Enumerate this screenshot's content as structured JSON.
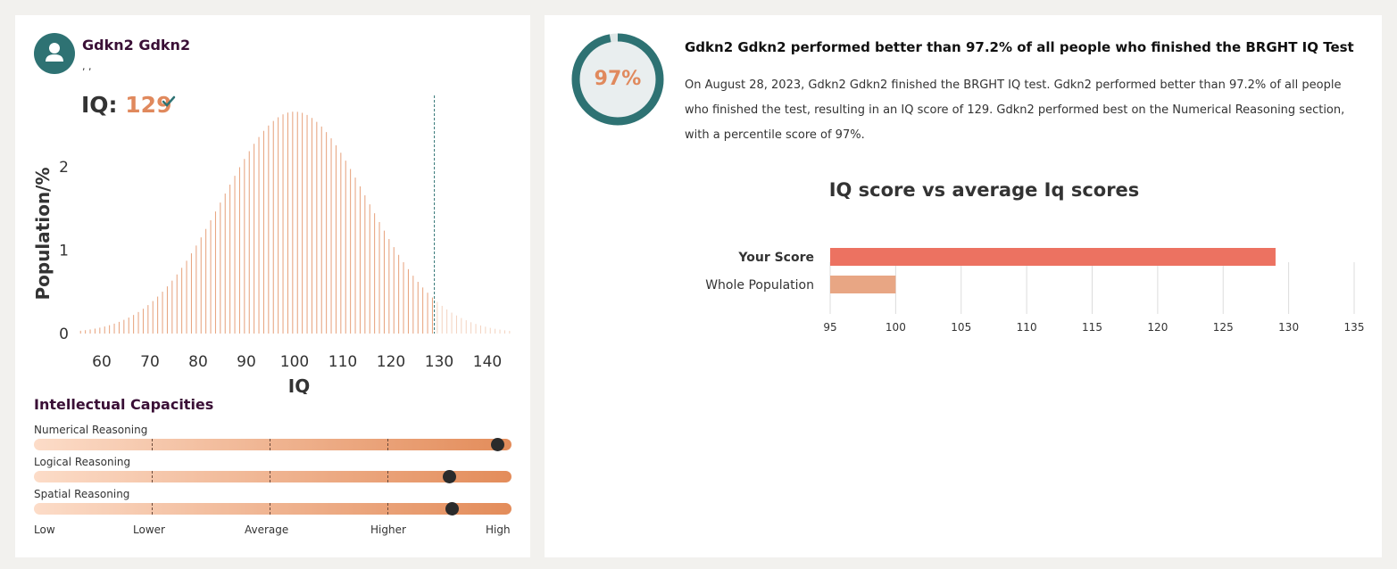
{
  "user": {
    "name": "Gdkn2 Gdkn2",
    "sub": ", ,"
  },
  "iq": {
    "label": "IQ:",
    "value": "129"
  },
  "icons": {
    "avatar": "user-icon",
    "check": "check-icon"
  },
  "colors": {
    "accent": "#e0895d",
    "teal": "#2e7273",
    "bar_your_score": "#ec7261",
    "bar_population": "#e8a684",
    "title_purple": "#3a0f36"
  },
  "distribution_chart": {
    "chart_data": {
      "type": "bar",
      "xlabel": "IQ",
      "ylabel": "Population/%",
      "x_range": [
        55,
        145
      ],
      "y_range": [
        0,
        2.8
      ],
      "x_ticks": [
        60,
        70,
        80,
        90,
        100,
        110,
        120,
        130,
        140
      ],
      "y_ticks": [
        0,
        1,
        2
      ],
      "mean": 100,
      "sd": 15,
      "marker_iq": 129,
      "grid": false
    }
  },
  "capacities": {
    "title": "Intellectual Capacities",
    "items": [
      {
        "label": "Numerical Reasoning",
        "level": 0.97
      },
      {
        "label": "Logical Reasoning",
        "level": 0.87
      },
      {
        "label": "Spatial Reasoning",
        "level": 0.875
      }
    ],
    "scale": [
      "Low",
      "Lower",
      "Average",
      "Higher",
      "High"
    ]
  },
  "percentile": {
    "value": 97,
    "label": "97%"
  },
  "headline": "Gdkn2 Gdkn2 performed better than 97.2% of all people who finished the BRGHT IQ Test",
  "summary": "On August 28, 2023, Gdkn2 Gdkn2 finished the BRGHT IQ test. Gdkn2 performed better than 97.2% of all people who finished the test, resulting in an IQ score of 129. Gdkn2 performed best on the Numerical Reasoning section, with a percentile score of 97%.",
  "comparison_chart": {
    "title": "IQ score vs average Iq scores",
    "chart_data": {
      "type": "bar",
      "orientation": "horizontal",
      "categories": [
        "Your Score",
        "Whole Population"
      ],
      "values": [
        129,
        100
      ],
      "xlim": [
        95,
        135
      ],
      "x_ticks": [
        95,
        100,
        105,
        110,
        115,
        120,
        125,
        130,
        135
      ],
      "grid": true
    }
  }
}
